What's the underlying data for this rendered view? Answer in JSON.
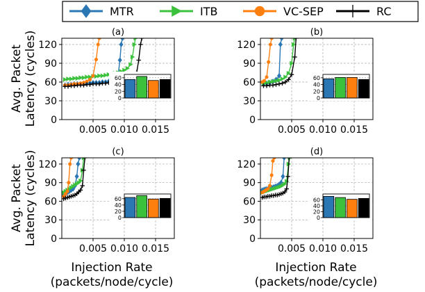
{
  "legend": {
    "entries": [
      {
        "label": "MTR",
        "color": "#2a77b4",
        "marker": "diamond"
      },
      {
        "label": "ITB",
        "color": "#3cc13c",
        "marker": "triangle-right"
      },
      {
        "label": "VC-SEP",
        "color": "#ff7f0e",
        "marker": "circle"
      },
      {
        "label": "RC",
        "color": "#000000",
        "marker": "plus"
      }
    ]
  },
  "ylabel": "Avg. Packet\nLatency (cycles)",
  "xlabel": "Injection Rate\n(packets/node/cycle)",
  "chart_data": [
    {
      "type": "line",
      "panel": "(a)",
      "xlim": [
        0,
        0.018
      ],
      "ylim": [
        0,
        130
      ],
      "xticks": [
        "0.005",
        "0.010",
        "0.015"
      ],
      "xtick_values": [
        0.005,
        0.01,
        0.015
      ],
      "yticks": [
        0,
        30,
        60,
        90,
        120
      ],
      "grid": true,
      "series": [
        {
          "name": "MTR",
          "x": [
            0.0005,
            0.001,
            0.0015,
            0.002,
            0.0025,
            0.003,
            0.0035,
            0.004,
            0.0045,
            0.005,
            0.0055,
            0.006,
            0.0065,
            0.007,
            0.0075,
            0.008,
            0.0085,
            0.009,
            0.0093,
            0.0095,
            0.0097
          ],
          "y": [
            55,
            56,
            56,
            57,
            57,
            57,
            58,
            58,
            58,
            59,
            59,
            59,
            60,
            60,
            61,
            62,
            64,
            70,
            95,
            120,
            130
          ]
        },
        {
          "name": "ITB",
          "x": [
            0.0005,
            0.001,
            0.0015,
            0.002,
            0.0025,
            0.003,
            0.0035,
            0.004,
            0.0045,
            0.005,
            0.0055,
            0.006,
            0.0065,
            0.007,
            0.0075,
            0.008,
            0.0085,
            0.009,
            0.0095,
            0.01,
            0.0105,
            0.011,
            0.0113,
            0.0116,
            0.0118
          ],
          "y": [
            64,
            65,
            65,
            66,
            66,
            67,
            67,
            68,
            68,
            69,
            69,
            70,
            70,
            71,
            72,
            73,
            74,
            75,
            77,
            79,
            82,
            88,
            100,
            120,
            130
          ]
        },
        {
          "name": "VC-SEP",
          "x": [
            0.0005,
            0.001,
            0.0015,
            0.002,
            0.0025,
            0.003,
            0.0035,
            0.004,
            0.0045,
            0.005,
            0.0055,
            0.0058,
            0.006
          ],
          "y": [
            55,
            55,
            56,
            57,
            57,
            58,
            59,
            61,
            64,
            70,
            96,
            120,
            130
          ]
        },
        {
          "name": "RC",
          "x": [
            0.0005,
            0.001,
            0.0015,
            0.002,
            0.0025,
            0.003,
            0.0035,
            0.004,
            0.0045,
            0.005,
            0.0055,
            0.006,
            0.0065,
            0.007,
            0.0075,
            0.008,
            0.0085,
            0.009,
            0.0095,
            0.01,
            0.0105,
            0.011,
            0.0115,
            0.012,
            0.0123,
            0.0126,
            0.0128
          ],
          "y": [
            53,
            53,
            54,
            54,
            55,
            55,
            55,
            56,
            56,
            57,
            57,
            57,
            58,
            58,
            59,
            59,
            60,
            60,
            61,
            62,
            63,
            65,
            68,
            76,
            95,
            120,
            130
          ]
        }
      ],
      "inset": {
        "type": "bar",
        "values": [
          55,
          64,
          52,
          55
        ],
        "ylim": [
          0,
          70
        ],
        "yticks": [
          0,
          20,
          40,
          60
        ]
      }
    },
    {
      "type": "line",
      "panel": "(b)",
      "xlim": [
        0,
        0.018
      ],
      "ylim": [
        0,
        130
      ],
      "xticks": [
        "0.005",
        "0.010",
        "0.015"
      ],
      "xtick_values": [
        0.005,
        0.01,
        0.015
      ],
      "yticks": [
        0,
        30,
        60,
        90,
        120
      ],
      "grid": true,
      "series": [
        {
          "name": "MTR",
          "x": [
            0.0005,
            0.001,
            0.0015,
            0.002,
            0.0025,
            0.003,
            0.0032,
            0.0034
          ],
          "y": [
            57,
            58,
            59,
            61,
            64,
            70,
            120,
            130
          ]
        },
        {
          "name": "ITB",
          "x": [
            0.0005,
            0.001,
            0.0015,
            0.002,
            0.0025,
            0.003,
            0.0035,
            0.004,
            0.0045,
            0.005,
            0.0053,
            0.0055
          ],
          "y": [
            58,
            59,
            60,
            61,
            62,
            63,
            65,
            68,
            74,
            90,
            120,
            130
          ]
        },
        {
          "name": "VC-SEP",
          "x": [
            0.0003,
            0.0006,
            0.001,
            0.0013,
            0.0016,
            0.0018
          ],
          "y": [
            60,
            62,
            68,
            92,
            120,
            130
          ]
        },
        {
          "name": "RC",
          "x": [
            0.0005,
            0.001,
            0.0015,
            0.002,
            0.0025,
            0.003,
            0.0035,
            0.004,
            0.0045,
            0.005,
            0.0055,
            0.0057
          ],
          "y": [
            54,
            54,
            55,
            55,
            56,
            57,
            58,
            60,
            64,
            72,
            100,
            130
          ]
        }
      ],
      "inset": {
        "type": "bar",
        "values": [
          57,
          61,
          61,
          55
        ],
        "ylim": [
          0,
          70
        ],
        "yticks": [
          0,
          20,
          40,
          60
        ]
      }
    },
    {
      "type": "line",
      "panel": "(c)",
      "xlim": [
        0,
        0.018
      ],
      "ylim": [
        0,
        130
      ],
      "xticks": [
        "0.005",
        "0.010",
        "0.015"
      ],
      "xtick_values": [
        0.005,
        0.01,
        0.015
      ],
      "yticks": [
        0,
        30,
        60,
        90,
        120
      ],
      "grid": true,
      "series": [
        {
          "name": "MTR",
          "x": [
            0.0003,
            0.0006,
            0.0009,
            0.0012,
            0.0015,
            0.0018,
            0.0021,
            0.0024,
            0.0026,
            0.0028
          ],
          "y": [
            70,
            72,
            74,
            76,
            78,
            80,
            85,
            100,
            120,
            130
          ]
        },
        {
          "name": "ITB",
          "x": [
            0.0003,
            0.0006,
            0.0009,
            0.0012,
            0.0015,
            0.0018,
            0.0021,
            0.0024,
            0.0027,
            0.003,
            0.0033,
            0.0035
          ],
          "y": [
            74,
            76,
            78,
            80,
            82,
            84,
            86,
            88,
            90,
            93,
            110,
            130
          ]
        },
        {
          "name": "VC-SEP",
          "x": [
            0.0003,
            0.0006,
            0.0009,
            0.0011,
            0.0013,
            0.0015
          ],
          "y": [
            68,
            72,
            76,
            90,
            120,
            130
          ]
        },
        {
          "name": "RC",
          "x": [
            0.0003,
            0.0006,
            0.0009,
            0.0012,
            0.0015,
            0.0018,
            0.0021,
            0.0024,
            0.0027,
            0.003,
            0.0033,
            0.0035,
            0.0037
          ],
          "y": [
            64,
            65,
            66,
            67,
            68,
            69,
            70,
            72,
            75,
            78,
            85,
            110,
            130
          ]
        }
      ],
      "inset": {
        "type": "bar",
        "values": [
          64,
          70,
          59,
          61
        ],
        "ylim": [
          0,
          75
        ],
        "yticks": [
          0,
          20,
          40,
          60
        ]
      }
    },
    {
      "type": "line",
      "panel": "(d)",
      "xlim": [
        0,
        0.018
      ],
      "ylim": [
        0,
        130
      ],
      "xticks": [
        "0.005",
        "0.010",
        "0.015"
      ],
      "xtick_values": [
        0.005,
        0.01,
        0.015
      ],
      "yticks": [
        0,
        30,
        60,
        90,
        120
      ],
      "grid": true,
      "series": [
        {
          "name": "MTR",
          "x": [
            0.0003,
            0.0006,
            0.0009,
            0.0012,
            0.0015,
            0.0018,
            0.0021,
            0.0024,
            0.0027,
            0.003,
            0.0033,
            0.0036,
            0.0038
          ],
          "y": [
            78,
            79,
            80,
            80,
            81,
            82,
            83,
            84,
            85,
            87,
            90,
            100,
            130
          ]
        },
        {
          "name": "ITB",
          "x": [
            0.0003,
            0.0006,
            0.0009,
            0.0012,
            0.0015,
            0.0018,
            0.0021,
            0.0024,
            0.0027,
            0.003,
            0.0033,
            0.0036,
            0.0039,
            0.0042,
            0.0045,
            0.0047
          ],
          "y": [
            74,
            75,
            76,
            77,
            78,
            79,
            80,
            81,
            82,
            83,
            84,
            86,
            88,
            92,
            120,
            130
          ]
        },
        {
          "name": "VC-SEP",
          "x": [
            0.0003,
            0.0006,
            0.0009,
            0.0012,
            0.0015,
            0.0018,
            0.002,
            0.0022
          ],
          "y": [
            74,
            76,
            78,
            80,
            85,
            102,
            125,
            130
          ]
        },
        {
          "name": "RC",
          "x": [
            0.0003,
            0.0006,
            0.0009,
            0.0012,
            0.0015,
            0.0018,
            0.0021,
            0.0024,
            0.0027,
            0.003,
            0.0033,
            0.0036,
            0.0039,
            0.0042,
            0.0044,
            0.0046
          ],
          "y": [
            66,
            67,
            67,
            68,
            68,
            69,
            69,
            70,
            70,
            71,
            72,
            73,
            75,
            80,
            100,
            130
          ]
        }
      ],
      "inset": {
        "type": "bar",
        "values": [
          72,
          68,
          62,
          65
        ],
        "ylim": [
          0,
          80
        ],
        "yticks": [
          0,
          20,
          40,
          60
        ]
      }
    }
  ]
}
